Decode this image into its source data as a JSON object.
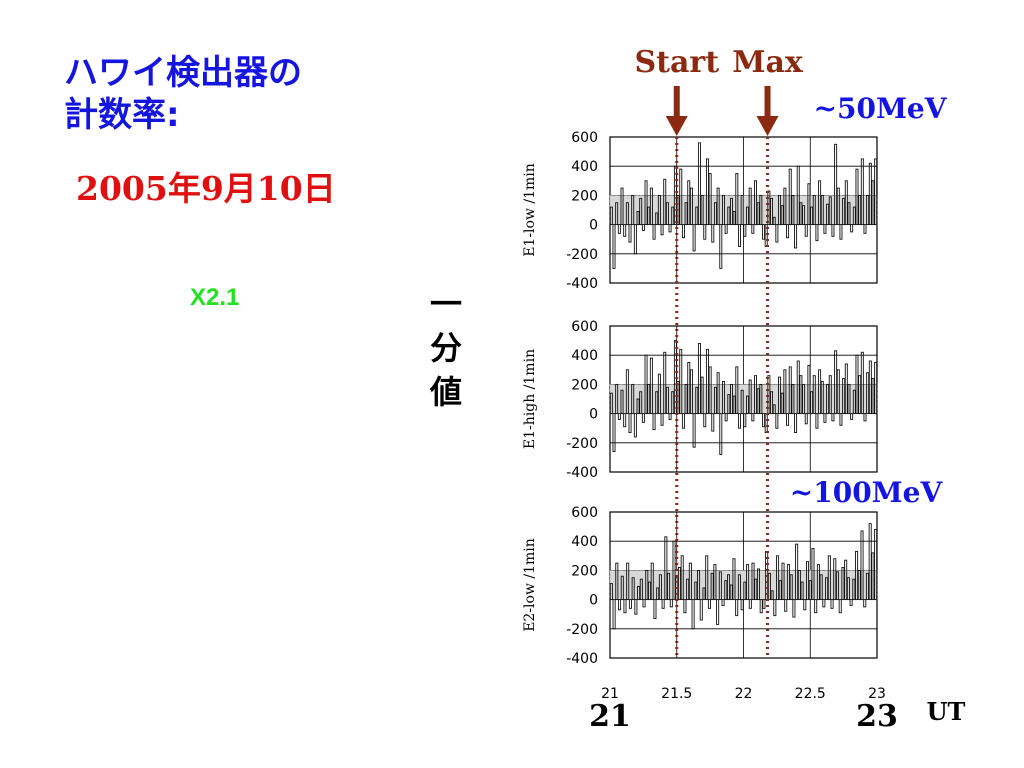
{
  "slide": {
    "title_line1": "ハワイ検出器の",
    "title_line2": "計数率:",
    "date": "2005年9月10日",
    "flare_class": "X2.1",
    "side_label_chars": [
      "一",
      "分",
      "値"
    ],
    "colors": {
      "title": "#1515e0",
      "date": "#e01010",
      "flare": "#22e022",
      "marker": "#8b2a10",
      "energy": "#1515e0"
    }
  },
  "chart_data": {
    "type": "bar",
    "x_ticks": [
      21,
      21.5,
      22,
      22.5,
      23
    ],
    "x_tick_labels": [
      "21",
      "21.5",
      "22",
      "22.5",
      "23"
    ],
    "x_big_labels": [
      "21",
      "23"
    ],
    "x_unit": "UT",
    "xlim": [
      21,
      23
    ],
    "ylim": [
      -400,
      600
    ],
    "y_ticks": [
      -400,
      -200,
      0,
      200,
      400,
      600
    ],
    "y_tick_labels": [
      "-400",
      "-200",
      "0",
      "200",
      "400",
      "600"
    ],
    "markers": [
      {
        "label": "Start",
        "x": 21.5
      },
      {
        "label": "Max",
        "x": 22.18
      }
    ],
    "energy_labels": [
      "~50MeV",
      "~100MeV"
    ],
    "panels": [
      {
        "ylabel": "E1-low /1min",
        "sigma_band": [
          0,
          200
        ],
        "values": [
          120,
          -300,
          150,
          -60,
          250,
          -80,
          150,
          -120,
          200,
          -200,
          90,
          180,
          -40,
          300,
          120,
          250,
          -100,
          80,
          200,
          -70,
          310,
          150,
          -50,
          120,
          400,
          200,
          380,
          -90,
          150,
          300,
          250,
          -180,
          120,
          560,
          200,
          -100,
          450,
          350,
          -120,
          150,
          250,
          -300,
          200,
          -60,
          120,
          180,
          90,
          350,
          -150,
          200,
          -80,
          120,
          250,
          -60,
          300,
          150,
          200,
          -100,
          -150,
          230,
          180,
          50,
          -120,
          200,
          130,
          250,
          -90,
          380,
          200,
          -160,
          400,
          150,
          130,
          -80,
          280,
          120,
          200,
          -110,
          300,
          200,
          -60,
          140,
          190,
          -80,
          550,
          250,
          -100,
          180,
          300,
          150,
          -50,
          120,
          380,
          200,
          450,
          -60,
          200,
          420,
          300,
          450
        ]
      },
      {
        "ylabel": "E1-high /1min",
        "sigma_band": [
          0,
          200
        ],
        "values": [
          140,
          -260,
          200,
          -40,
          160,
          -90,
          300,
          -130,
          200,
          -160,
          100,
          150,
          -60,
          400,
          200,
          380,
          -110,
          150,
          270,
          -80,
          420,
          180,
          -40,
          150,
          500,
          220,
          440,
          -100,
          200,
          350,
          300,
          -230,
          180,
          480,
          250,
          -90,
          440,
          320,
          -120,
          180,
          280,
          -280,
          220,
          -50,
          130,
          200,
          120,
          320,
          -100,
          160,
          -90,
          120,
          230,
          -50,
          260,
          170,
          200,
          -90,
          -130,
          260,
          150,
          60,
          -100,
          250,
          140,
          300,
          -80,
          320,
          200,
          -130,
          360,
          260,
          200,
          -70,
          330,
          150,
          260,
          -100,
          300,
          220,
          -60,
          200,
          260,
          -50,
          430,
          300,
          -80,
          240,
          340,
          200,
          -40,
          160,
          400,
          260,
          420,
          -50,
          280,
          360,
          240,
          350
        ]
      },
      {
        "ylabel": "E2-low /1min",
        "sigma_band": [
          0,
          200
        ],
        "values": [
          110,
          -200,
          250,
          -70,
          160,
          -90,
          250,
          -60,
          150,
          -100,
          90,
          140,
          -50,
          200,
          120,
          250,
          -130,
          80,
          170,
          -60,
          430,
          180,
          -50,
          400,
          150,
          220,
          300,
          -90,
          140,
          250,
          -200,
          120,
          200,
          -140,
          80,
          300,
          -60,
          180,
          240,
          -170,
          190,
          -40,
          130,
          170,
          100,
          280,
          -110,
          170,
          -70,
          120,
          240,
          -60,
          250,
          140,
          210,
          -90,
          -60,
          330,
          180,
          60,
          -110,
          300,
          130,
          250,
          -80,
          240,
          170,
          -120,
          380,
          200,
          120,
          -70,
          260,
          130,
          350,
          -90,
          240,
          170,
          -50,
          150,
          300,
          -60,
          280,
          190,
          -90,
          220,
          270,
          150,
          -40,
          140,
          330,
          200,
          470,
          -50,
          180,
          520,
          320,
          480
        ]
      }
    ]
  }
}
